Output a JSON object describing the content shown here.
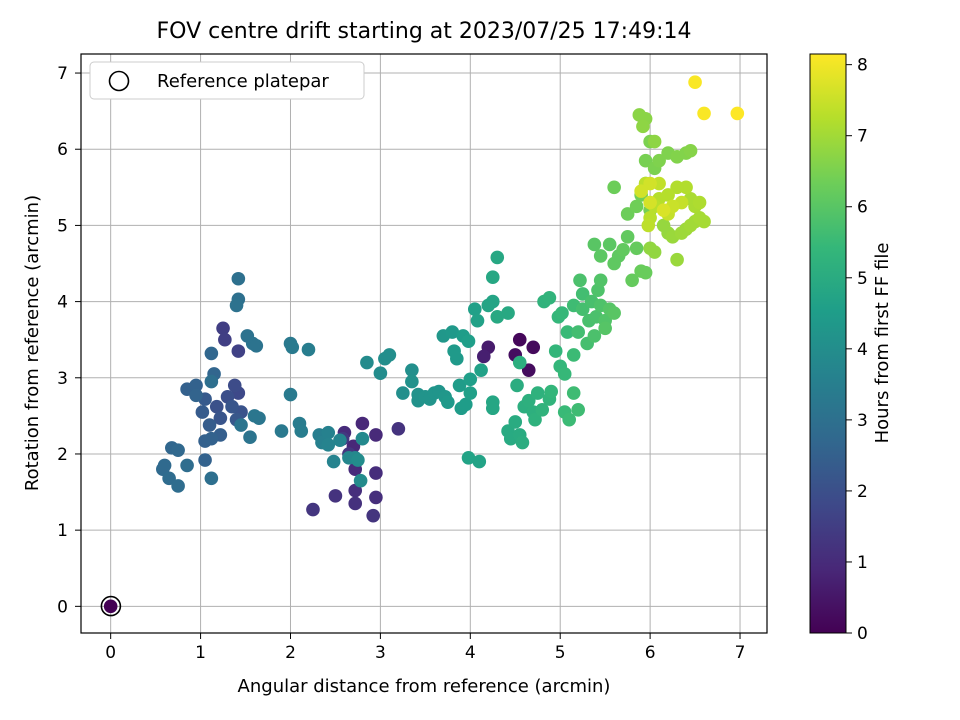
{
  "chart_data": {
    "type": "scatter",
    "title": "FOV centre drift starting at 2023/07/25 17:49:14",
    "xlabel": "Angular distance from reference (arcmin)",
    "ylabel": "Rotation from reference (arcmin)",
    "xlim": [
      -0.33,
      7.3
    ],
    "ylim": [
      -0.35,
      7.25
    ],
    "xticks": [
      0,
      1,
      2,
      3,
      4,
      5,
      6,
      7
    ],
    "yticks": [
      0,
      1,
      2,
      3,
      4,
      5,
      6,
      7
    ],
    "grid": true,
    "legend": {
      "position": "top-left",
      "entries": [
        "Reference platepar"
      ]
    },
    "reference_point": {
      "x": 0,
      "y": 0,
      "label": "Reference platepar"
    },
    "colorbar": {
      "label": "Hours from first FF file",
      "min": 0,
      "max": 8.15,
      "ticks": [
        0,
        1,
        2,
        3,
        4,
        5,
        6,
        7,
        8
      ],
      "colormap": "viridis",
      "stops": [
        "#440154",
        "#482878",
        "#3e4989",
        "#31688e",
        "#26828e",
        "#1f9e89",
        "#35b779",
        "#6ece58",
        "#b5de2b",
        "#fde725"
      ]
    },
    "points": [
      [
        0,
        0,
        0
      ],
      [
        4.55,
        3.5,
        0.15
      ],
      [
        4.7,
        3.4,
        0.2
      ],
      [
        4.65,
        3.1,
        0.25
      ],
      [
        4.5,
        3.3,
        0.3
      ],
      [
        4.2,
        3.4,
        0.6
      ],
      [
        4.15,
        3.28,
        0.7
      ],
      [
        2.7,
        2.1,
        0.9
      ],
      [
        2.8,
        2.4,
        0.9
      ],
      [
        2.95,
        2.25,
        0.95
      ],
      [
        2.6,
        2.28,
        1.0
      ],
      [
        2.72,
        1.8,
        1.0
      ],
      [
        2.95,
        1.75,
        1.05
      ],
      [
        2.72,
        1.52,
        1.1
      ],
      [
        2.95,
        1.43,
        1.1
      ],
      [
        2.5,
        1.45,
        1.2
      ],
      [
        2.72,
        1.35,
        1.15
      ],
      [
        2.92,
        1.19,
        1.25
      ],
      [
        2.25,
        1.27,
        1.3
      ],
      [
        3.2,
        2.33,
        1.2
      ],
      [
        2.65,
        2.0,
        1.3
      ],
      [
        2.58,
        2.2,
        1.35
      ],
      [
        1.25,
        3.65,
        1.5
      ],
      [
        1.27,
        3.5,
        1.55
      ],
      [
        1.42,
        3.35,
        1.6
      ],
      [
        1.42,
        2.8,
        1.8
      ],
      [
        1.38,
        2.9,
        1.9
      ],
      [
        1.3,
        2.75,
        2.0
      ],
      [
        1.18,
        2.62,
        2.05
      ],
      [
        1.45,
        2.55,
        2.1
      ],
      [
        1.22,
        2.47,
        2.15
      ],
      [
        1.35,
        2.62,
        2.2
      ],
      [
        1.4,
        2.45,
        2.25
      ],
      [
        1.05,
        2.72,
        2.3
      ],
      [
        1.02,
        2.55,
        2.35
      ],
      [
        1.1,
        2.38,
        2.4
      ],
      [
        1.22,
        2.25,
        2.45
      ],
      [
        1.05,
        2.17,
        2.5
      ],
      [
        1.12,
        2.2,
        2.55
      ],
      [
        1.05,
        1.92,
        2.55
      ],
      [
        0.85,
        2.85,
        2.5
      ],
      [
        0.95,
        2.9,
        2.55
      ],
      [
        0.95,
        2.77,
        2.6
      ],
      [
        1.15,
        3.05,
        2.65
      ],
      [
        1.12,
        3.32,
        2.7
      ],
      [
        0.68,
        2.08,
        2.7
      ],
      [
        0.75,
        2.05,
        2.75
      ],
      [
        0.6,
        1.85,
        2.8
      ],
      [
        0.58,
        1.8,
        2.8
      ],
      [
        0.65,
        1.68,
        2.85
      ],
      [
        0.75,
        1.58,
        2.9
      ],
      [
        0.85,
        1.85,
        2.9
      ],
      [
        1.12,
        1.68,
        2.95
      ],
      [
        1.12,
        2.95,
        2.95
      ],
      [
        1.42,
        4.3,
        3.0
      ],
      [
        1.42,
        4.03,
        3.0
      ],
      [
        1.4,
        3.95,
        3.05
      ],
      [
        1.52,
        3.55,
        3.05
      ],
      [
        1.58,
        3.45,
        3.1
      ],
      [
        1.62,
        3.42,
        3.1
      ],
      [
        1.45,
        2.38,
        3.15
      ],
      [
        1.55,
        2.22,
        3.15
      ],
      [
        1.6,
        2.5,
        3.2
      ],
      [
        1.65,
        2.47,
        3.2
      ],
      [
        1.9,
        2.3,
        3.3
      ],
      [
        2.0,
        3.45,
        3.3
      ],
      [
        2.02,
        3.4,
        3.35
      ],
      [
        2.0,
        2.78,
        3.35
      ],
      [
        2.1,
        2.4,
        3.4
      ],
      [
        2.12,
        2.3,
        3.45
      ],
      [
        2.2,
        3.37,
        3.45
      ],
      [
        2.32,
        2.25,
        3.5
      ],
      [
        2.35,
        2.15,
        3.55
      ],
      [
        2.42,
        2.28,
        3.6
      ],
      [
        2.42,
        2.12,
        3.65
      ],
      [
        2.48,
        1.9,
        3.65
      ],
      [
        2.55,
        2.18,
        3.7
      ],
      [
        2.65,
        1.95,
        3.75
      ],
      [
        2.72,
        1.95,
        3.8
      ],
      [
        2.8,
        2.2,
        3.85
      ],
      [
        2.78,
        1.65,
        3.9
      ],
      [
        2.75,
        1.92,
        3.95
      ],
      [
        2.85,
        3.2,
        3.9
      ],
      [
        3.0,
        3.06,
        3.95
      ],
      [
        3.05,
        3.25,
        4.0
      ],
      [
        3.1,
        3.3,
        4.0
      ],
      [
        3.25,
        2.8,
        4.05
      ],
      [
        3.35,
        3.1,
        4.05
      ],
      [
        3.35,
        2.95,
        4.1
      ],
      [
        3.42,
        2.78,
        4.15
      ],
      [
        3.42,
        2.7,
        4.15
      ],
      [
        3.5,
        2.75,
        4.2
      ],
      [
        3.55,
        2.72,
        4.2
      ],
      [
        3.6,
        2.8,
        4.25
      ],
      [
        3.65,
        2.82,
        4.25
      ],
      [
        3.7,
        3.55,
        4.3
      ],
      [
        3.72,
        2.75,
        4.3
      ],
      [
        3.75,
        2.68,
        4.35
      ],
      [
        3.8,
        3.6,
        4.35
      ],
      [
        3.82,
        3.35,
        4.4
      ],
      [
        3.85,
        3.25,
        4.4
      ],
      [
        3.88,
        2.9,
        4.45
      ],
      [
        3.9,
        2.6,
        4.45
      ],
      [
        3.92,
        3.55,
        4.5
      ],
      [
        3.95,
        2.65,
        4.5
      ],
      [
        3.98,
        3.48,
        4.55
      ],
      [
        4.0,
        2.98,
        4.55
      ],
      [
        4.0,
        2.8,
        4.6
      ],
      [
        4.05,
        3.9,
        4.6
      ],
      [
        4.08,
        3.75,
        4.65
      ],
      [
        4.12,
        3.1,
        4.65
      ],
      [
        3.98,
        1.95,
        4.7
      ],
      [
        4.1,
        1.9,
        4.7
      ],
      [
        4.2,
        3.95,
        4.75
      ],
      [
        4.25,
        4.0,
        4.75
      ],
      [
        4.25,
        2.68,
        4.8
      ],
      [
        4.25,
        2.6,
        4.8
      ],
      [
        4.25,
        4.32,
        4.85
      ],
      [
        4.3,
        4.58,
        4.85
      ],
      [
        4.3,
        3.8,
        4.9
      ],
      [
        4.42,
        3.85,
        4.9
      ],
      [
        4.42,
        2.3,
        4.95
      ],
      [
        4.45,
        2.2,
        4.95
      ],
      [
        4.5,
        2.42,
        5.0
      ],
      [
        4.55,
        2.25,
        5.0
      ],
      [
        4.58,
        2.15,
        5.05
      ],
      [
        4.52,
        2.9,
        5.05
      ],
      [
        4.55,
        3.2,
        5.1
      ],
      [
        4.6,
        2.62,
        5.1
      ],
      [
        4.65,
        2.7,
        5.15
      ],
      [
        4.7,
        2.55,
        5.15
      ],
      [
        4.72,
        2.45,
        5.2
      ],
      [
        4.75,
        2.8,
        5.2
      ],
      [
        4.8,
        2.58,
        5.25
      ],
      [
        4.82,
        4.0,
        5.25
      ],
      [
        4.88,
        4.05,
        5.3
      ],
      [
        4.88,
        2.72,
        5.3
      ],
      [
        4.9,
        2.82,
        5.35
      ],
      [
        4.95,
        3.35,
        5.35
      ],
      [
        4.98,
        3.8,
        5.4
      ],
      [
        5.0,
        3.15,
        5.4
      ],
      [
        5.02,
        3.85,
        5.45
      ],
      [
        5.05,
        3.05,
        5.45
      ],
      [
        5.05,
        2.55,
        5.5
      ],
      [
        5.08,
        3.6,
        5.5
      ],
      [
        5.1,
        2.45,
        5.55
      ],
      [
        5.15,
        3.3,
        5.55
      ],
      [
        5.15,
        2.8,
        5.6
      ],
      [
        5.2,
        2.58,
        5.6
      ],
      [
        5.15,
        3.95,
        5.6
      ],
      [
        5.2,
        3.6,
        5.65
      ],
      [
        5.25,
        4.1,
        5.65
      ],
      [
        5.25,
        3.9,
        5.7
      ],
      [
        5.3,
        3.45,
        5.7
      ],
      [
        5.32,
        3.75,
        5.75
      ],
      [
        5.35,
        4.0,
        5.75
      ],
      [
        5.38,
        3.55,
        5.8
      ],
      [
        5.4,
        3.8,
        5.8
      ],
      [
        5.42,
        4.15,
        5.85
      ],
      [
        5.45,
        3.95,
        5.85
      ],
      [
        5.45,
        4.28,
        5.9
      ],
      [
        5.5,
        3.75,
        5.9
      ],
      [
        5.5,
        3.65,
        5.95
      ],
      [
        5.55,
        3.9,
        5.95
      ],
      [
        5.6,
        3.85,
        6.0
      ],
      [
        5.22,
        4.28,
        5.8
      ],
      [
        5.38,
        4.75,
        6.0
      ],
      [
        5.45,
        4.6,
        6.05
      ],
      [
        5.55,
        4.75,
        6.05
      ],
      [
        5.6,
        4.5,
        6.1
      ],
      [
        5.65,
        4.6,
        6.1
      ],
      [
        5.7,
        4.68,
        6.15
      ],
      [
        5.75,
        4.85,
        6.15
      ],
      [
        5.8,
        4.28,
        6.2
      ],
      [
        5.85,
        4.7,
        6.2
      ],
      [
        5.9,
        4.4,
        6.25
      ],
      [
        5.95,
        4.38,
        6.25
      ],
      [
        5.6,
        5.5,
        6.3
      ],
      [
        5.75,
        5.15,
        6.3
      ],
      [
        5.85,
        5.25,
        6.35
      ],
      [
        5.9,
        5.4,
        6.35
      ],
      [
        5.95,
        5.55,
        6.4
      ],
      [
        6.0,
        5.2,
        6.4
      ],
      [
        5.95,
        5.85,
        6.45
      ],
      [
        6.0,
        6.1,
        6.5
      ],
      [
        6.05,
        5.75,
        6.5
      ],
      [
        6.1,
        5.85,
        6.55
      ],
      [
        6.2,
        5.95,
        6.55
      ],
      [
        6.3,
        5.9,
        6.6
      ],
      [
        6.4,
        5.95,
        6.6
      ],
      [
        6.45,
        5.98,
        6.65
      ],
      [
        5.88,
        6.45,
        6.7
      ],
      [
        5.95,
        6.4,
        6.7
      ],
      [
        5.92,
        6.3,
        6.75
      ],
      [
        6.05,
        6.1,
        6.75
      ],
      [
        6.0,
        4.7,
        6.8
      ],
      [
        6.05,
        4.65,
        6.8
      ],
      [
        6.15,
        5.0,
        6.85
      ],
      [
        6.2,
        4.9,
        6.85
      ],
      [
        6.25,
        4.85,
        6.9
      ],
      [
        6.3,
        4.55,
        6.9
      ],
      [
        6.35,
        4.9,
        6.95
      ],
      [
        6.4,
        4.95,
        6.95
      ],
      [
        6.45,
        5.0,
        7.0
      ],
      [
        6.5,
        5.05,
        7.0
      ],
      [
        6.55,
        5.1,
        7.05
      ],
      [
        6.6,
        5.05,
        7.05
      ],
      [
        6.5,
        5.25,
        7.1
      ],
      [
        6.45,
        5.35,
        7.1
      ],
      [
        6.55,
        5.3,
        7.15
      ],
      [
        6.4,
        5.5,
        7.2
      ],
      [
        6.3,
        5.5,
        7.2
      ],
      [
        6.2,
        5.4,
        7.25
      ],
      [
        6.1,
        5.35,
        7.25
      ],
      [
        6.05,
        5.25,
        7.3
      ],
      [
        6.0,
        5.1,
        7.3
      ],
      [
        5.95,
        5.55,
        7.35
      ],
      [
        5.98,
        5.0,
        7.35
      ],
      [
        6.1,
        5.55,
        7.4
      ],
      [
        6.2,
        5.15,
        7.45
      ],
      [
        6.35,
        5.3,
        7.45
      ],
      [
        6.25,
        5.25,
        7.5
      ],
      [
        6.0,
        5.55,
        7.6
      ],
      [
        5.9,
        5.45,
        7.6
      ],
      [
        6.0,
        5.3,
        7.65
      ],
      [
        6.15,
        5.2,
        7.7
      ],
      [
        6.5,
        6.88,
        8.1
      ],
      [
        6.6,
        6.47,
        8.1
      ],
      [
        6.97,
        6.47,
        8.15
      ]
    ]
  }
}
